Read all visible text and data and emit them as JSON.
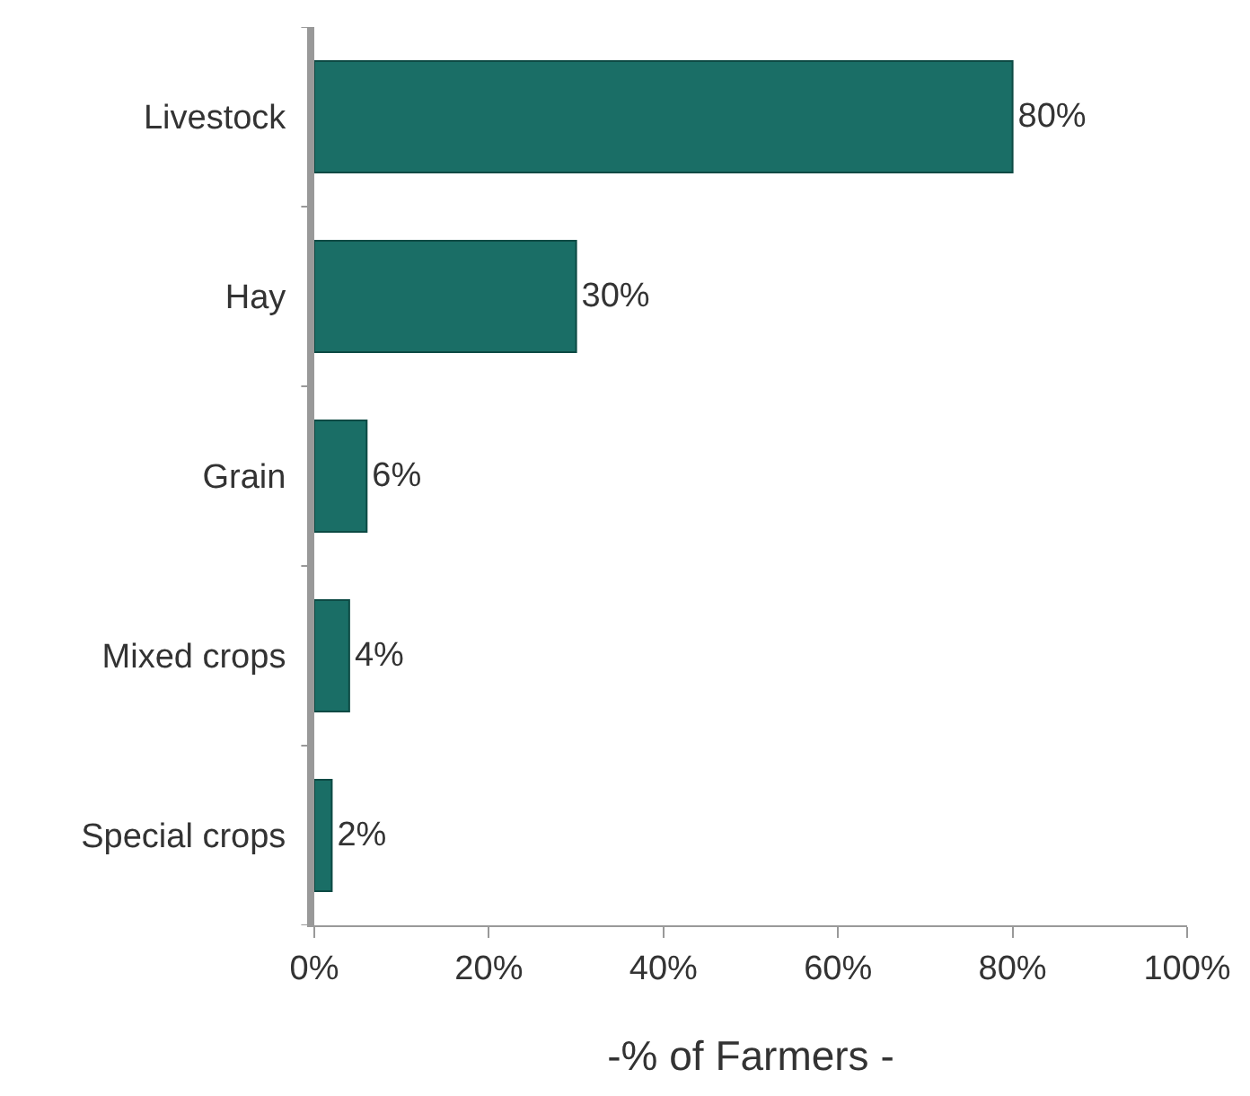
{
  "chart_data": {
    "type": "bar",
    "orientation": "horizontal",
    "categories": [
      "Livestock",
      "Hay",
      "Grain",
      "Mixed crops",
      "Special crops"
    ],
    "values": [
      80,
      30,
      6,
      4,
      2
    ],
    "value_labels": [
      "80%",
      "30%",
      "6%",
      "4%",
      "2%"
    ],
    "color": "#1a6e66",
    "xlabel": "-% of Farmers -",
    "xlim": [
      0,
      100
    ],
    "xticks": [
      {
        "value": 0,
        "label": "0%"
      },
      {
        "value": 20,
        "label": "20%"
      },
      {
        "value": 40,
        "label": "40%"
      },
      {
        "value": 60,
        "label": "60%"
      },
      {
        "value": 80,
        "label": "80%"
      },
      {
        "value": 100,
        "label": "100%"
      }
    ],
    "grid": false,
    "legend": false
  }
}
